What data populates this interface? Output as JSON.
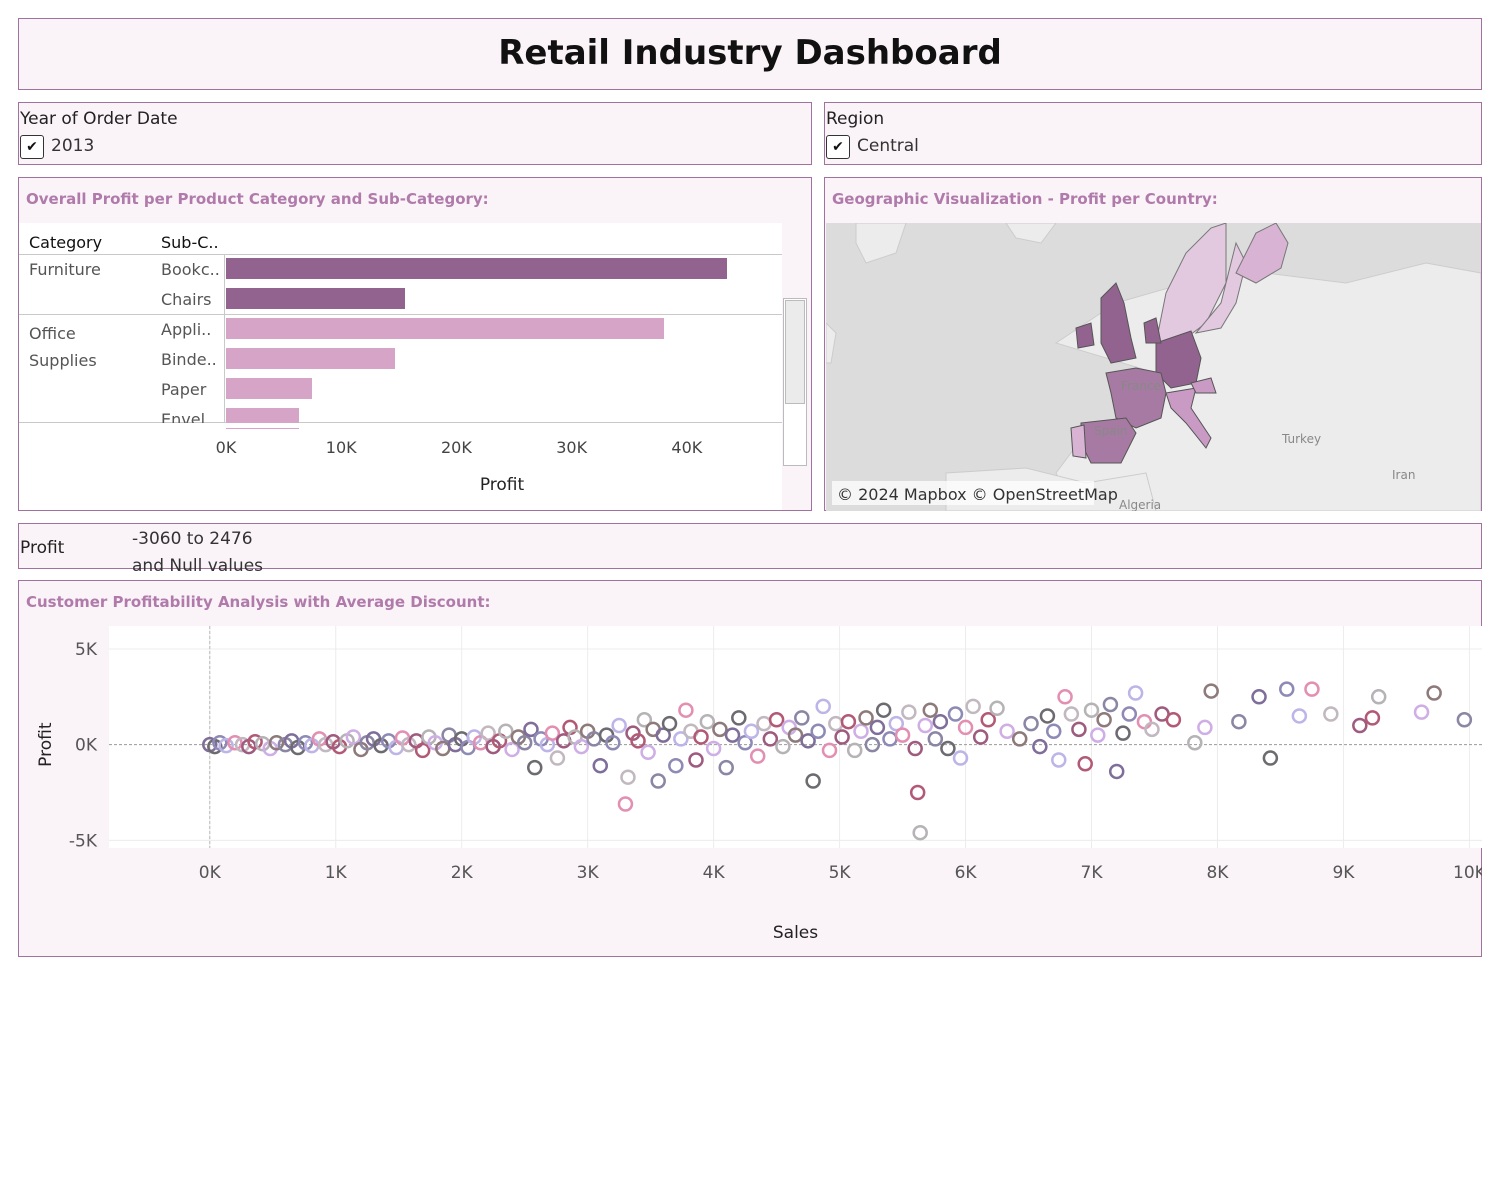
{
  "dashboard": {
    "title": "Retail Industry Dashboard"
  },
  "filters": {
    "year": {
      "title": "Year of Order Date",
      "value": "2013",
      "checked": true
    },
    "region": {
      "title": "Region",
      "value": "Central",
      "checked": true
    }
  },
  "bar_panel": {
    "title": "Overall Profit per Product Category and Sub-Category:",
    "headers": {
      "category": "Category",
      "subcategory": "Sub-C.."
    }
  },
  "map_panel": {
    "title": "Geographic Visualization - Profit per Country:",
    "labels": [
      "France",
      "Spain",
      "Turkey",
      "Iran",
      "Algeria"
    ],
    "attribution": "© 2024 Mapbox © OpenStreetMap"
  },
  "profit_legend": {
    "title": "Profit",
    "range": "-3060 to 2476",
    "null_text": "and Null values"
  },
  "scatter_panel": {
    "title": "Customer Profitability Analysis with Average Discount:"
  },
  "colors": {
    "accent": "#a0729e",
    "furniture": "#93638f",
    "office": "#d6a4c7",
    "title_text": "#b07aaa"
  },
  "chart_data": [
    {
      "type": "bar",
      "orientation": "horizontal",
      "title": "Overall Profit per Product Category and Sub-Category:",
      "xlabel": "Profit",
      "xlim": [
        0,
        46000
      ],
      "x_ticks": [
        "0K",
        "10K",
        "20K",
        "30K",
        "40K"
      ],
      "groups": [
        {
          "category": "Furniture",
          "color": "#93638f",
          "items": [
            {
              "sub": "Bookc..",
              "value": 43500
            },
            {
              "sub": "Chairs",
              "value": 15500
            }
          ]
        },
        {
          "category": "Office Supplies",
          "color": "#d6a4c7",
          "items": [
            {
              "sub": "Appli..",
              "value": 38000
            },
            {
              "sub": "Binde..",
              "value": 14700
            },
            {
              "sub": "Paper",
              "value": 7500
            },
            {
              "sub": "Envel..",
              "value": 6300
            }
          ]
        }
      ]
    },
    {
      "type": "scatter",
      "title": "Customer Profitability Analysis with Average Discount:",
      "xlabel": "Sales",
      "ylabel": "Profit",
      "xlim": [
        -800,
        10100
      ],
      "ylim": [
        -5400,
        6200
      ],
      "x_ticks": [
        "0K",
        "1K",
        "2K",
        "3K",
        "4K",
        "5K",
        "6K",
        "7K",
        "8K",
        "9K",
        "10K"
      ],
      "y_ticks": [
        "5K",
        "0K",
        "-5K"
      ],
      "palette": [
        "#7f6e9a",
        "#6d6a70",
        "#8e8ab6",
        "#bdb4e8",
        "#e38fb2",
        "#c2b8c0",
        "#9e5b7f",
        "#b25a75",
        "#b6b3b6",
        "#cfaee5",
        "#8e7a7a",
        "#8a86a3"
      ],
      "points": [
        [
          0,
          0
        ],
        [
          40,
          -100
        ],
        [
          80,
          100
        ],
        [
          130,
          -50
        ],
        [
          200,
          100
        ],
        [
          260,
          0
        ],
        [
          310,
          -100
        ],
        [
          360,
          150
        ],
        [
          420,
          50
        ],
        [
          480,
          -200
        ],
        [
          530,
          100
        ],
        [
          600,
          0
        ],
        [
          650,
          200
        ],
        [
          700,
          -150
        ],
        [
          760,
          100
        ],
        [
          810,
          -50
        ],
        [
          870,
          300
        ],
        [
          920,
          0
        ],
        [
          980,
          150
        ],
        [
          1030,
          -100
        ],
        [
          1090,
          200
        ],
        [
          1140,
          400
        ],
        [
          1200,
          -250
        ],
        [
          1250,
          100
        ],
        [
          1300,
          300
        ],
        [
          1360,
          -50
        ],
        [
          1420,
          200
        ],
        [
          1480,
          -150
        ],
        [
          1530,
          350
        ],
        [
          1580,
          0
        ],
        [
          1640,
          200
        ],
        [
          1690,
          -300
        ],
        [
          1740,
          400
        ],
        [
          1790,
          100
        ],
        [
          1850,
          -200
        ],
        [
          1900,
          500
        ],
        [
          1950,
          0
        ],
        [
          2000,
          300
        ],
        [
          2050,
          -150
        ],
        [
          2100,
          400
        ],
        [
          2150,
          100
        ],
        [
          2210,
          600
        ],
        [
          2250,
          -100
        ],
        [
          2300,
          200
        ],
        [
          2350,
          700
        ],
        [
          2400,
          -250
        ],
        [
          2450,
          400
        ],
        [
          2500,
          100
        ],
        [
          2550,
          800
        ],
        [
          2580,
          -1200
        ],
        [
          2630,
          300
        ],
        [
          2680,
          0
        ],
        [
          2720,
          600
        ],
        [
          2760,
          -700
        ],
        [
          2810,
          200
        ],
        [
          2860,
          900
        ],
        [
          2900,
          400
        ],
        [
          2950,
          -100
        ],
        [
          3000,
          700
        ],
        [
          3050,
          300
        ],
        [
          3100,
          -1100
        ],
        [
          3150,
          500
        ],
        [
          3200,
          100
        ],
        [
          3250,
          1000
        ],
        [
          3300,
          -3100
        ],
        [
          3320,
          -1700
        ],
        [
          3360,
          600
        ],
        [
          3400,
          200
        ],
        [
          3450,
          1300
        ],
        [
          3480,
          -400
        ],
        [
          3520,
          800
        ],
        [
          3560,
          -1900
        ],
        [
          3600,
          500
        ],
        [
          3650,
          1100
        ],
        [
          3700,
          -1100
        ],
        [
          3740,
          300
        ],
        [
          3780,
          1800
        ],
        [
          3820,
          700
        ],
        [
          3860,
          -800
        ],
        [
          3900,
          400
        ],
        [
          3950,
          1200
        ],
        [
          4000,
          -200
        ],
        [
          4050,
          800
        ],
        [
          4100,
          -1200
        ],
        [
          4150,
          500
        ],
        [
          4200,
          1400
        ],
        [
          4250,
          100
        ],
        [
          4300,
          700
        ],
        [
          4350,
          -600
        ],
        [
          4400,
          1100
        ],
        [
          4450,
          300
        ],
        [
          4500,
          1300
        ],
        [
          4550,
          -100
        ],
        [
          4600,
          900
        ],
        [
          4650,
          500
        ],
        [
          4700,
          1400
        ],
        [
          4750,
          200
        ],
        [
          4790,
          -1900
        ],
        [
          4830,
          700
        ],
        [
          4870,
          2000
        ],
        [
          4920,
          -300
        ],
        [
          4970,
          1100
        ],
        [
          5020,
          400
        ],
        [
          5070,
          1200
        ],
        [
          5120,
          -300
        ],
        [
          5170,
          700
        ],
        [
          5210,
          1400
        ],
        [
          5260,
          0
        ],
        [
          5300,
          900
        ],
        [
          5350,
          1800
        ],
        [
          5400,
          300
        ],
        [
          5450,
          1100
        ],
        [
          5500,
          500
        ],
        [
          5550,
          1700
        ],
        [
          5600,
          -200
        ],
        [
          5620,
          -2500
        ],
        [
          5640,
          -4600
        ],
        [
          5680,
          1000
        ],
        [
          5720,
          1800
        ],
        [
          5760,
          300
        ],
        [
          5800,
          1200
        ],
        [
          5860,
          -200
        ],
        [
          5920,
          1600
        ],
        [
          5960,
          -700
        ],
        [
          6000,
          900
        ],
        [
          6060,
          2000
        ],
        [
          6120,
          400
        ],
        [
          6180,
          1300
        ],
        [
          6250,
          1900
        ],
        [
          6330,
          700
        ],
        [
          6430,
          300
        ],
        [
          6520,
          1100
        ],
        [
          6590,
          -100
        ],
        [
          6650,
          1500
        ],
        [
          6700,
          700
        ],
        [
          6740,
          -800
        ],
        [
          6790,
          2500
        ],
        [
          6840,
          1600
        ],
        [
          6900,
          800
        ],
        [
          6950,
          -1000
        ],
        [
          7000,
          1800
        ],
        [
          7050,
          500
        ],
        [
          7100,
          1300
        ],
        [
          7150,
          2100
        ],
        [
          7200,
          -1400
        ],
        [
          7250,
          600
        ],
        [
          7300,
          1600
        ],
        [
          7350,
          2700
        ],
        [
          7420,
          1200
        ],
        [
          7480,
          800
        ],
        [
          7560,
          1600
        ],
        [
          7650,
          1300
        ],
        [
          7820,
          100
        ],
        [
          7900,
          900
        ],
        [
          7950,
          2800
        ],
        [
          8170,
          1200
        ],
        [
          8330,
          2500
        ],
        [
          8420,
          -700
        ],
        [
          8550,
          2900
        ],
        [
          8650,
          1500
        ],
        [
          8750,
          2900
        ],
        [
          8900,
          1600
        ],
        [
          9130,
          1000
        ],
        [
          9230,
          1400
        ],
        [
          9280,
          2500
        ],
        [
          9620,
          1700
        ],
        [
          9720,
          2700
        ],
        [
          9960,
          1300
        ]
      ]
    }
  ]
}
